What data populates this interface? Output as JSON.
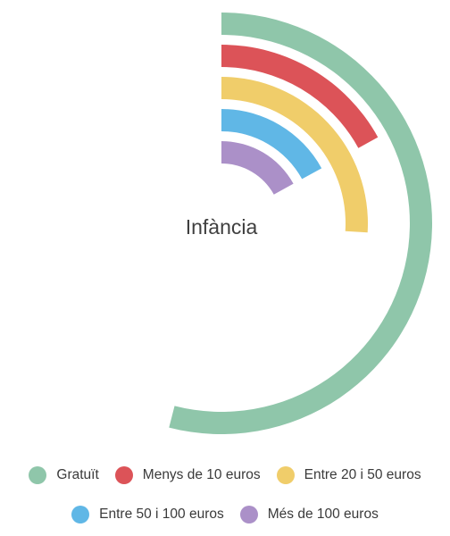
{
  "chart_data": {
    "type": "radial-bar",
    "title": "Infància",
    "max_value": 100,
    "series": [
      {
        "name": "Gratuït",
        "value": 54,
        "color": "#8fc6aa"
      },
      {
        "name": "Menys de 10 euros",
        "value": 17,
        "color": "#dc5358"
      },
      {
        "name": "Entre 20 i 50 euros",
        "value": 26,
        "color": "#f0cd6a"
      },
      {
        "name": "Entre 50 i 100 euros",
        "value": 17,
        "color": "#60b7e6"
      },
      {
        "name": "Més de 100 euros",
        "value": 17,
        "color": "#ab90c8"
      }
    ]
  },
  "legend": {
    "row1": [
      {
        "label": "Gratuït",
        "color": "#8fc6aa"
      },
      {
        "label": "Menys de 10 euros",
        "color": "#dc5358"
      },
      {
        "label": "Entre 20 i 50 euros",
        "color": "#f0cd6a"
      }
    ],
    "row2": [
      {
        "label": "Entre 50 i 100 euros",
        "color": "#60b7e6"
      },
      {
        "label": "Més de 100 euros",
        "color": "#ab90c8"
      }
    ]
  }
}
